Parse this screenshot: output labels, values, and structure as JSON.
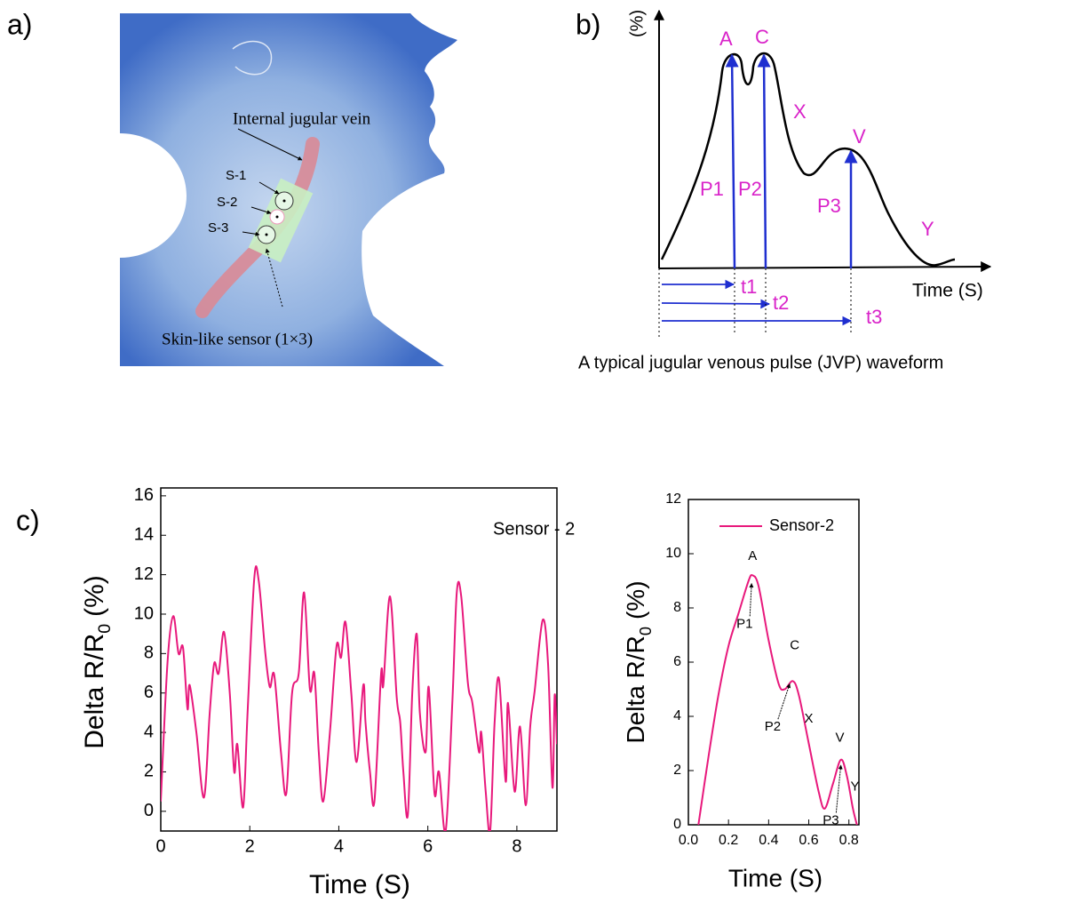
{
  "panel_a": {
    "label": "a)",
    "vein": "Internal jugular vein",
    "sensors": [
      "S-1",
      "S-2",
      "S-3"
    ],
    "sensor_caption": "Skin-like sensor (1×3)"
  },
  "panel_b": {
    "label": "b)",
    "y_unit": "(%)",
    "waves": [
      "A",
      "C",
      "X",
      "V",
      "Y"
    ],
    "pressures": [
      "P1",
      "P2",
      "P3"
    ],
    "times": [
      "t1",
      "t2",
      "t3"
    ],
    "x_label": "Time (S)",
    "caption": "A typical jugular venous pulse (JVP) waveform"
  },
  "panel_c": {
    "label": "c)"
  },
  "chart_data": [
    {
      "type": "line",
      "x_label": "Time (S)",
      "y_label": [
        "Delta R/R",
        "0",
        "(%)"
      ],
      "legend": "upper right",
      "legend_line": false,
      "xlim": [
        0,
        8.9
      ],
      "ylim": [
        -1,
        16.4
      ],
      "xticks": [
        0,
        2,
        4,
        6,
        8
      ],
      "yticks": [
        0,
        2,
        4,
        6,
        8,
        10,
        12,
        14,
        16
      ],
      "x": [
        0,
        0.15,
        0.28,
        0.4,
        0.5,
        0.6,
        0.65,
        0.8,
        0.97,
        1.1,
        1.2,
        1.3,
        1.42,
        1.55,
        1.65,
        1.72,
        1.85,
        1.95,
        2.1,
        2.2,
        2.35,
        2.45,
        2.55,
        2.7,
        2.82,
        2.95,
        3.1,
        3.22,
        3.35,
        3.45,
        3.55,
        3.65,
        3.8,
        3.95,
        4.05,
        4.15,
        4.28,
        4.4,
        4.55,
        4.6,
        4.7,
        4.8,
        4.95,
        5.0,
        5.15,
        5.3,
        5.38,
        5.45,
        5.55,
        5.65,
        5.75,
        5.82,
        5.95,
        6.02,
        6.15,
        6.25,
        6.4,
        6.55,
        6.65,
        6.75,
        6.9,
        7.0,
        7.15,
        7.2,
        7.3,
        7.4,
        7.5,
        7.6,
        7.75,
        7.8,
        7.95,
        8.07,
        8.2,
        8.3,
        8.4,
        8.58,
        8.7,
        8.8,
        8.85,
        8.9
      ],
      "series": [
        {
          "name": "Sensor - 2",
          "color": "#e8197c",
          "values": [
            0.5,
            7.5,
            9.9,
            8,
            8.3,
            5.2,
            6.4,
            4,
            0.7,
            5,
            7.5,
            7,
            9.1,
            6,
            2,
            3.4,
            0.2,
            5,
            11.8,
            11.7,
            8,
            6.3,
            6.9,
            3,
            0.9,
            6,
            7,
            11.1,
            6.2,
            7,
            3,
            0.5,
            4,
            8.4,
            7.8,
            9.6,
            6,
            2.5,
            6.4,
            4.5,
            2,
            0.5,
            7,
            6.4,
            10.9,
            5.8,
            4.5,
            2,
            -0.2,
            6,
            9,
            5,
            3,
            6.3,
            0.9,
            2,
            -1,
            5.5,
            11.1,
            10.9,
            6.5,
            5.5,
            3,
            4,
            1,
            -1,
            4.5,
            6.7,
            1.5,
            5.5,
            1,
            4.3,
            0.3,
            4.3,
            6.1,
            9.7,
            7.5,
            1.2,
            5.9,
            3.4
          ]
        }
      ]
    },
    {
      "type": "line",
      "x_label": "Time (S)",
      "y_label": [
        "Delta R/R",
        "0",
        "(%)"
      ],
      "legend": "upper right",
      "legend_line": true,
      "xlim": [
        0,
        0.85
      ],
      "ylim": [
        0,
        12
      ],
      "xticks": [
        {
          "value": 0,
          "label": "0.0"
        },
        0.2,
        0.4,
        0.6,
        0.8
      ],
      "yticks": [
        0,
        2,
        4,
        6,
        8,
        10,
        12
      ],
      "x": [
        0.05,
        0.1,
        0.15,
        0.2,
        0.25,
        0.3,
        0.32,
        0.35,
        0.4,
        0.45,
        0.48,
        0.52,
        0.55,
        0.6,
        0.65,
        0.68,
        0.72,
        0.76,
        0.79,
        0.82,
        0.84
      ],
      "series": [
        {
          "name": "Sensor-2",
          "color": "#e8197c",
          "values": [
            0,
            2.5,
            4.8,
            6.6,
            7.8,
            9.0,
            9.2,
            8.8,
            6.8,
            5.2,
            5.0,
            5.3,
            4.8,
            3.0,
            1.2,
            0.6,
            1.5,
            2.4,
            1.8,
            0.6,
            0
          ]
        }
      ],
      "annotations": [
        "A",
        "P1",
        "C",
        "P2",
        "X",
        "V",
        "P3",
        "Y"
      ]
    }
  ]
}
